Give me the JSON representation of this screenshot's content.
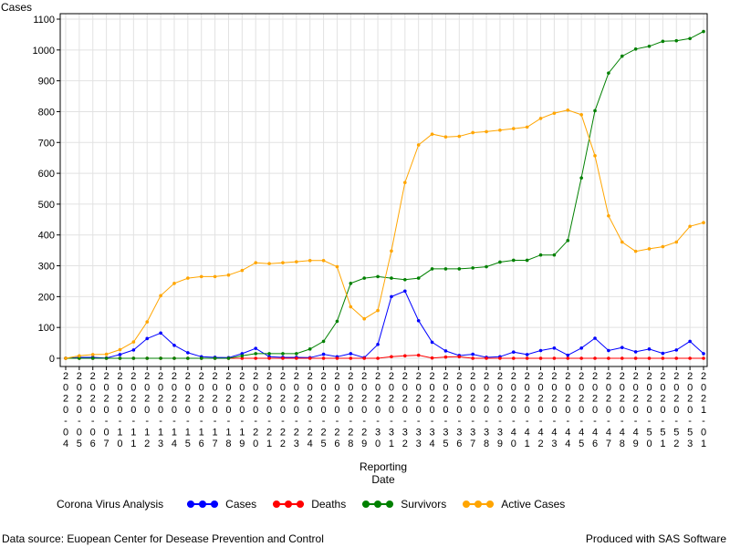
{
  "chart_data": {
    "type": "line",
    "ylabel": "Cases",
    "xlabel_line1": "Reporting",
    "xlabel_line2": "Date",
    "ylim": [
      0,
      1100
    ],
    "yticks": [
      0,
      100,
      200,
      300,
      400,
      500,
      600,
      700,
      800,
      900,
      1000,
      1100
    ],
    "grid": true,
    "categories": [
      "2020-04",
      "2020-05",
      "2020-06",
      "2020-07",
      "2020-10",
      "2020-11",
      "2020-12",
      "2020-13",
      "2020-14",
      "2020-15",
      "2020-16",
      "2020-17",
      "2020-18",
      "2020-19",
      "2020-20",
      "2020-21",
      "2020-22",
      "2020-23",
      "2020-24",
      "2020-25",
      "2020-26",
      "2020-28",
      "2020-29",
      "2020-30",
      "2020-31",
      "2020-32",
      "2020-33",
      "2020-34",
      "2020-35",
      "2020-36",
      "2020-37",
      "2020-38",
      "2020-39",
      "2020-40",
      "2020-41",
      "2020-42",
      "2020-43",
      "2020-44",
      "2020-45",
      "2020-46",
      "2020-47",
      "2020-48",
      "2020-49",
      "2020-50",
      "2020-51",
      "2020-52",
      "2020-53",
      "2021-01"
    ],
    "series": [
      {
        "name": "Cases",
        "color": "#0000ff",
        "values": [
          0,
          3,
          3,
          1,
          12,
          27,
          64,
          82,
          42,
          18,
          5,
          3,
          2,
          15,
          32,
          5,
          3,
          3,
          2,
          13,
          5,
          15,
          2,
          45,
          200,
          218,
          122,
          52,
          24,
          9,
          13,
          3,
          5,
          20,
          12,
          25,
          33,
          10,
          33,
          65,
          25,
          35,
          21,
          30,
          16,
          27,
          55,
          15
        ]
      },
      {
        "name": "Deaths",
        "color": "#ff0000",
        "values": [
          0,
          0,
          0,
          0,
          0,
          0,
          0,
          0,
          0,
          0,
          0,
          0,
          0,
          0,
          0,
          0,
          0,
          0,
          0,
          0,
          0,
          0,
          0,
          0,
          5,
          8,
          10,
          1,
          4,
          5,
          0,
          0,
          0,
          0,
          0,
          0,
          0,
          0,
          0,
          0,
          0,
          0,
          0,
          0,
          0,
          0,
          0,
          0
        ]
      },
      {
        "name": "Survivors",
        "color": "#008000",
        "values": [
          0,
          0,
          0,
          0,
          0,
          0,
          0,
          0,
          0,
          0,
          0,
          0,
          0,
          8,
          15,
          15,
          15,
          15,
          30,
          55,
          120,
          243,
          260,
          265,
          260,
          255,
          260,
          290,
          290,
          290,
          293,
          297,
          312,
          318,
          318,
          335,
          335,
          382,
          585,
          803,
          925,
          980,
          1003,
          1012,
          1028,
          1030,
          1037,
          1060
        ]
      },
      {
        "name": "Active Cases",
        "color": "#ffa500",
        "values": [
          0,
          8,
          12,
          13,
          28,
          53,
          118,
          203,
          243,
          260,
          265,
          265,
          270,
          285,
          310,
          307,
          310,
          313,
          317,
          317,
          297,
          167,
          128,
          155,
          348,
          570,
          692,
          727,
          718,
          720,
          732,
          735,
          740,
          745,
          750,
          778,
          795,
          805,
          790,
          657,
          462,
          377,
          347,
          355,
          362,
          377,
          428,
          440
        ]
      }
    ]
  },
  "legend": {
    "title": "Corona Virus Analysis",
    "items": [
      "Cases",
      "Deaths",
      "Survivors",
      "Active Cases"
    ]
  },
  "footnote_left": "Data source: Euopean Center for Desease Prevention and Control",
  "footnote_right": "Produced with SAS Software"
}
